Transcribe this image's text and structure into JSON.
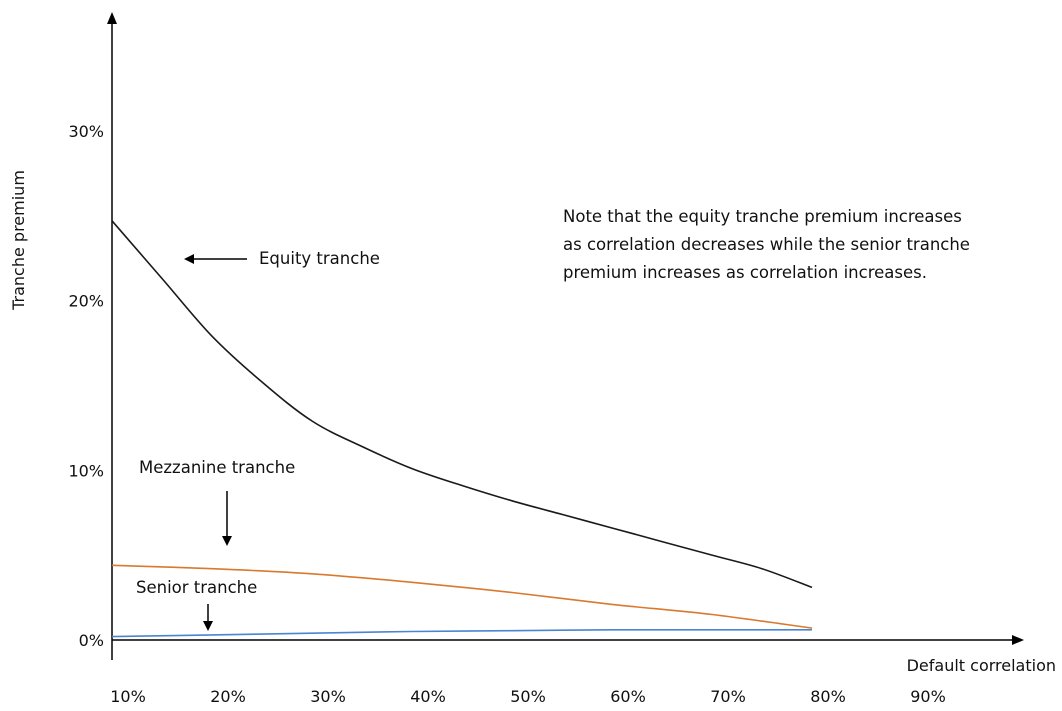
{
  "chart_data": {
    "type": "line",
    "xlabel": "Default  correlation",
    "ylabel": "Tranche premium",
    "x_ticks": [
      "10%",
      "20%",
      "30%",
      "40%",
      "50%",
      "60%",
      "70%",
      "80%",
      "90%"
    ],
    "y_ticks": [
      "0%",
      "10%",
      "20%",
      "30%"
    ],
    "xlim": [
      10,
      100
    ],
    "ylim": [
      0,
      37
    ],
    "series": [
      {
        "key": "equity",
        "color": "#1a1a1a",
        "x": [
          10,
          15,
          20,
          25,
          30,
          35,
          40,
          45,
          50,
          55,
          60,
          65,
          70,
          75,
          80
        ],
        "y": [
          24.7,
          21.3,
          17.9,
          15.2,
          12.9,
          11.4,
          10.1,
          9.1,
          8.2,
          7.4,
          6.6,
          5.8,
          5.0,
          4.2,
          3.1
        ]
      },
      {
        "key": "mezzanine",
        "color": "#d9792f",
        "x": [
          10,
          20,
          30,
          40,
          50,
          60,
          70,
          80
        ],
        "y": [
          4.4,
          4.2,
          3.9,
          3.4,
          2.8,
          2.1,
          1.5,
          0.7
        ]
      },
      {
        "key": "senior",
        "color": "#4a86d0",
        "x": [
          10,
          20,
          30,
          40,
          50,
          60,
          70,
          80
        ],
        "y": [
          0.2,
          0.3,
          0.4,
          0.5,
          0.55,
          0.6,
          0.6,
          0.6
        ]
      }
    ],
    "annotations": [
      {
        "key": "equity",
        "text": "Equity tranche"
      },
      {
        "key": "mezzanine",
        "text": "Mezzanine tranche"
      },
      {
        "key": "senior",
        "text": "Senior tranche"
      }
    ],
    "note": [
      "Note that the equity tranche premium increases",
      "as correlation decreases while the senior tranche",
      "premium increases as correlation increases."
    ]
  }
}
